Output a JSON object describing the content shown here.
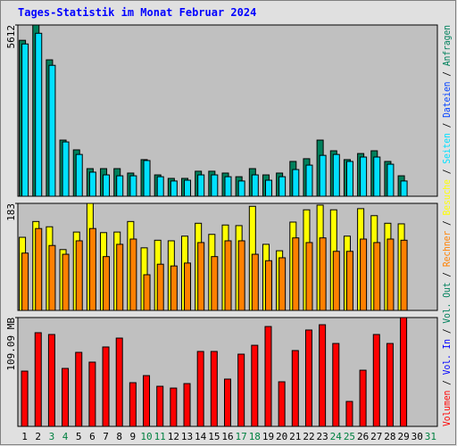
{
  "title": "Tages-Statistik im Monat Februar 2024",
  "right_label": [
    {
      "text": "Volumen",
      "color": "#ff0000"
    },
    {
      "text": " / ",
      "color": "#000000"
    },
    {
      "text": "Vol. In",
      "color": "#0000ff"
    },
    {
      "text": " / ",
      "color": "#000000"
    },
    {
      "text": "Vol. Out",
      "color": "#00805c"
    },
    {
      "text": " / ",
      "color": "#000000"
    },
    {
      "text": "Rechner",
      "color": "#ff8000"
    },
    {
      "text": " / ",
      "color": "#000000"
    },
    {
      "text": "Besuche",
      "color": "#ffff00"
    },
    {
      "text": " / ",
      "color": "#000000"
    },
    {
      "text": "Seiten",
      "color": "#00e0ff"
    },
    {
      "text": " / ",
      "color": "#000000"
    },
    {
      "text": "Dateien",
      "color": "#0040ff"
    },
    {
      "text": " / ",
      "color": "#000000"
    },
    {
      "text": "Anfragen",
      "color": "#00805c"
    }
  ],
  "chart_data": [
    {
      "type": "bar",
      "ylim": [
        0,
        5612
      ],
      "yticks": [
        5612
      ],
      "series": [
        {
          "color": "#00805c",
          "values": [
            5110,
            5612,
            4470,
            1840,
            1520,
            905,
            905,
            905,
            760,
            1200,
            700,
            585,
            585,
            820,
            820,
            760,
            640,
            905,
            700,
            760,
            1140,
            1230,
            1840,
            1490,
            1200,
            1400,
            1490,
            1140,
            670,
            null,
            null
          ]
        },
        {
          "color": "#00e0ff",
          "values": [
            4990,
            5340,
            4290,
            1780,
            1370,
            790,
            700,
            670,
            670,
            1170,
            640,
            500,
            525,
            700,
            700,
            640,
            500,
            700,
            525,
            640,
            875,
            1020,
            1340,
            1370,
            1140,
            1285,
            1285,
            1050,
            500,
            null,
            null
          ]
        }
      ]
    },
    {
      "type": "bar",
      "ylim": [
        0,
        183
      ],
      "yticks": [
        183
      ],
      "series": [
        {
          "color": "#ffff00",
          "values": [
            125,
            152,
            143,
            104,
            134,
            183,
            133,
            134,
            152,
            107,
            120,
            119,
            127,
            149,
            130,
            146,
            145,
            178,
            113,
            102,
            151,
            172,
            180,
            172,
            127,
            174,
            162,
            149,
            148,
            null,
            null
          ]
        },
        {
          "color": "#ff8000",
          "values": [
            98,
            140,
            111,
            96,
            119,
            140,
            92,
            113,
            122,
            61,
            79,
            76,
            81,
            116,
            92,
            119,
            119,
            96,
            85,
            90,
            124,
            116,
            124,
            101,
            101,
            122,
            116,
            122,
            120,
            null,
            null
          ]
        }
      ]
    },
    {
      "type": "bar",
      "ylim": [
        0,
        109.09
      ],
      "yticks": [
        {
          "value": 109.09,
          "label": "109.09 MB"
        }
      ],
      "categories": [
        "1",
        "2",
        "3",
        "4",
        "5",
        "6",
        "7",
        "8",
        "9",
        "10",
        "11",
        "12",
        "13",
        "14",
        "15",
        "16",
        "17",
        "18",
        "19",
        "20",
        "21",
        "22",
        "23",
        "24",
        "25",
        "26",
        "27",
        "28",
        "29",
        "30",
        "31"
      ],
      "category_colors": [
        "#000000",
        "#000000",
        "#008040",
        "#008040",
        "#000000",
        "#000000",
        "#000000",
        "#000000",
        "#000000",
        "#008040",
        "#008040",
        "#000000",
        "#000000",
        "#000000",
        "#000000",
        "#000000",
        "#008040",
        "#008040",
        "#000000",
        "#000000",
        "#000000",
        "#000000",
        "#000000",
        "#008040",
        "#008040",
        "#000000",
        "#000000",
        "#000000",
        "#000000",
        "#000000",
        "#008040"
      ],
      "series": [
        {
          "color": "#ff0000",
          "values": [
            55.4,
            93.9,
            92.1,
            58.1,
            74.2,
            64.4,
            79.6,
            88.5,
            43.8,
            50.9,
            40.2,
            38.4,
            42.9,
            75.1,
            75.1,
            47.4,
            72.4,
            81.3,
            100.1,
            44.7,
            76.0,
            96.6,
            101.9,
            83.1,
            25.0,
            56.3,
            92.1,
            83.1,
            109.09,
            null,
            null
          ]
        }
      ]
    }
  ]
}
